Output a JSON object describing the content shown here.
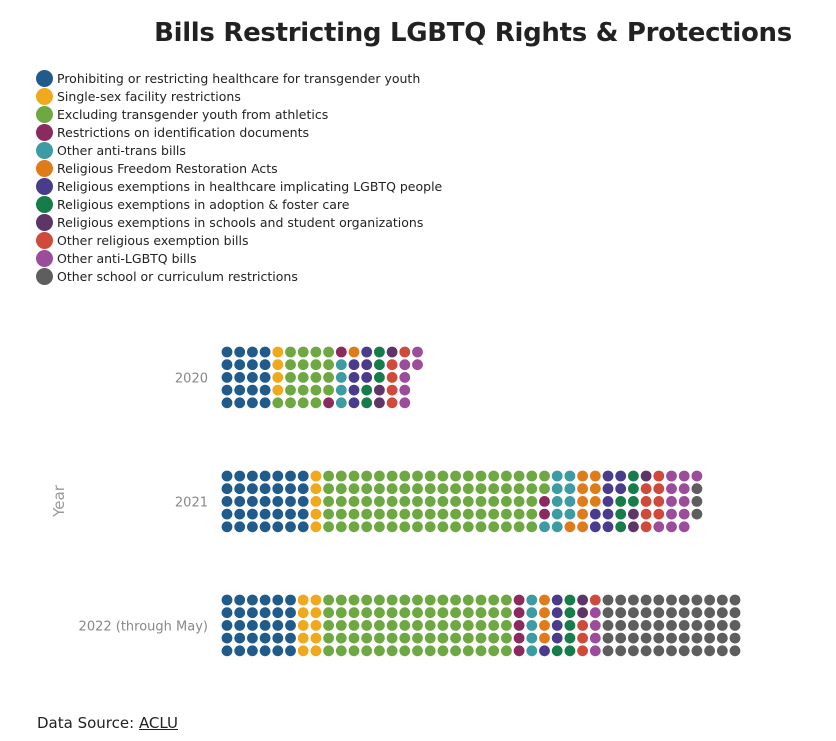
{
  "chart_data": {
    "type": "waffle",
    "title": "Bills Restricting LGBTQ Rights & Protections",
    "ylabel": "Year",
    "categories": [
      {
        "name": "Prohibiting or restricting healthcare for transgender youth",
        "color": "#205b8c"
      },
      {
        "name": "Single-sex facility restrictions",
        "color": "#f0a81c"
      },
      {
        "name": "Excluding transgender youth from athletics",
        "color": "#6ea843"
      },
      {
        "name": "Restrictions on identification documents",
        "color": "#8b2a5e"
      },
      {
        "name": "Other anti-trans bills",
        "color": "#3d9ba3"
      },
      {
        "name": "Religious Freedom Restoration Acts",
        "color": "#e07b1a"
      },
      {
        "name": "Religious exemptions in healthcare implicating LGBTQ people",
        "color": "#4b3b8c"
      },
      {
        "name": "Religious exemptions in adoption & foster care",
        "color": "#167d4a"
      },
      {
        "name": "Religious exemptions in schools and student organizations",
        "color": "#5d3566"
      },
      {
        "name": "Other religious exemption bills",
        "color": "#cf4a3b"
      },
      {
        "name": "Other anti-LGBTQ bills",
        "color": "#9b4d9b"
      },
      {
        "name": "Other school or curriculum restrictions",
        "color": "#5e5e5e"
      }
    ],
    "rows_per_column": 5,
    "years": [
      {
        "label": "2020",
        "counts": [
          20,
          4,
          20,
          2,
          4,
          1,
          7,
          5,
          3,
          5,
          6,
          0
        ]
      },
      {
        "label": "2021",
        "counts": [
          35,
          5,
          87,
          2,
          10,
          9,
          9,
          6,
          3,
          8,
          12,
          3
        ]
      },
      {
        "label": "2022 (through May)",
        "counts": [
          30,
          10,
          75,
          5,
          5,
          4,
          5,
          6,
          2,
          4,
          4,
          55
        ]
      }
    ]
  },
  "source": {
    "prefix": "Data Source: ",
    "link_text": "ACLU"
  }
}
